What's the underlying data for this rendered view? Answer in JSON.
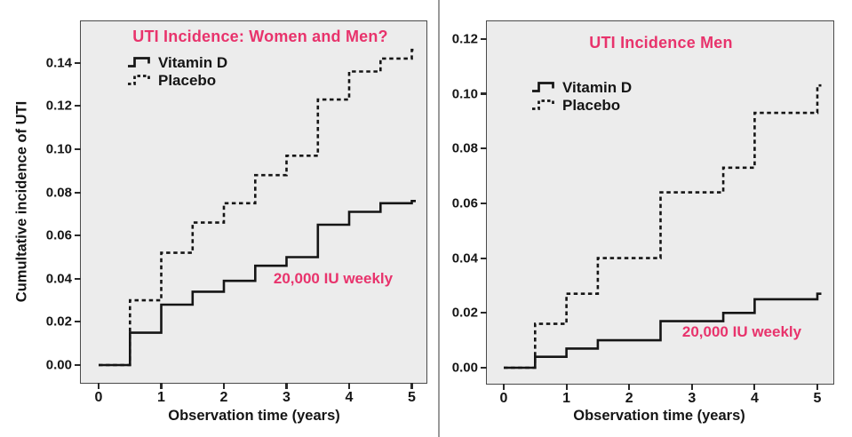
{
  "colors": {
    "accent_pink": "#E8336C",
    "line": "#151515",
    "plot_bg": "#ECECEC",
    "frame": "#4A4A4A",
    "divider": "#9A9A9A"
  },
  "chart_data": [
    {
      "type": "line",
      "subtype": "step",
      "title": "UTI Incidence: Women and Men?",
      "xlabel": "Observation time (years)",
      "ylabel": "Cumultative incidence of UTI",
      "annotation": "20,000 IU weekly",
      "xlim": [
        0,
        5
      ],
      "ylim": [
        0,
        0.15
      ],
      "grid": false,
      "legend_position": "top-left-inside",
      "x_ticks": [
        {
          "v": 0,
          "label": "0"
        },
        {
          "v": 1,
          "label": "1"
        },
        {
          "v": 2,
          "label": "2"
        },
        {
          "v": 3,
          "label": "3"
        },
        {
          "v": 4,
          "label": "4"
        },
        {
          "v": 5,
          "label": "5"
        }
      ],
      "y_ticks": [
        {
          "v": 0.0,
          "label": "0.00"
        },
        {
          "v": 0.02,
          "label": "0.02"
        },
        {
          "v": 0.04,
          "label": "0.04"
        },
        {
          "v": 0.06,
          "label": "0.06"
        },
        {
          "v": 0.08,
          "label": "0.08"
        },
        {
          "v": 0.1,
          "label": "0.10"
        },
        {
          "v": 0.12,
          "label": "0.12"
        },
        {
          "v": 0.14,
          "label": "0.14"
        }
      ],
      "series": [
        {
          "name": "Vitamin D",
          "style": "solid",
          "points": [
            [
              0,
              0
            ],
            [
              0.5,
              0.015
            ],
            [
              1,
              0.028
            ],
            [
              1.5,
              0.034
            ],
            [
              2,
              0.039
            ],
            [
              2.5,
              0.046
            ],
            [
              3,
              0.05
            ],
            [
              3.5,
              0.065
            ],
            [
              4,
              0.071
            ],
            [
              4.5,
              0.075
            ],
            [
              5,
              0.076
            ]
          ]
        },
        {
          "name": "Placebo",
          "style": "dashed",
          "points": [
            [
              0,
              0
            ],
            [
              0.5,
              0.03
            ],
            [
              1,
              0.052
            ],
            [
              1.5,
              0.066
            ],
            [
              2,
              0.075
            ],
            [
              2.5,
              0.088
            ],
            [
              3,
              0.097
            ],
            [
              3.5,
              0.123
            ],
            [
              4,
              0.136
            ],
            [
              4.5,
              0.142
            ],
            [
              5,
              0.146
            ]
          ]
        }
      ]
    },
    {
      "type": "line",
      "subtype": "step",
      "title": "UTI Incidence Men",
      "xlabel": "Observation time (years)",
      "ylabel": "",
      "annotation": "20,000 IU weekly",
      "xlim": [
        0,
        5
      ],
      "ylim": [
        0,
        0.125
      ],
      "grid": false,
      "legend_position": "top-left-inside",
      "x_ticks": [
        {
          "v": 0,
          "label": "0"
        },
        {
          "v": 1,
          "label": "1"
        },
        {
          "v": 2,
          "label": "2"
        },
        {
          "v": 3,
          "label": "3"
        },
        {
          "v": 4,
          "label": "4"
        },
        {
          "v": 5,
          "label": "5"
        }
      ],
      "y_ticks": [
        {
          "v": 0.0,
          "label": "0.00"
        },
        {
          "v": 0.02,
          "label": "0.02"
        },
        {
          "v": 0.04,
          "label": "0.04"
        },
        {
          "v": 0.06,
          "label": "0.06"
        },
        {
          "v": 0.08,
          "label": "0.08"
        },
        {
          "v": 0.1,
          "label": "0.10"
        },
        {
          "v": 0.12,
          "label": "0.12"
        }
      ],
      "series": [
        {
          "name": "Vitamin D",
          "style": "solid",
          "points": [
            [
              0,
              0
            ],
            [
              0.5,
              0.004
            ],
            [
              1,
              0.007
            ],
            [
              1.5,
              0.01
            ],
            [
              2.5,
              0.017
            ],
            [
              3.5,
              0.02
            ],
            [
              4,
              0.025
            ],
            [
              5,
              0.027
            ]
          ]
        },
        {
          "name": "Placebo",
          "style": "dashed",
          "points": [
            [
              0,
              0
            ],
            [
              0.5,
              0.016
            ],
            [
              1,
              0.027
            ],
            [
              1.5,
              0.04
            ],
            [
              2.5,
              0.064
            ],
            [
              3.5,
              0.073
            ],
            [
              4,
              0.093
            ],
            [
              5,
              0.103
            ]
          ]
        }
      ]
    }
  ]
}
